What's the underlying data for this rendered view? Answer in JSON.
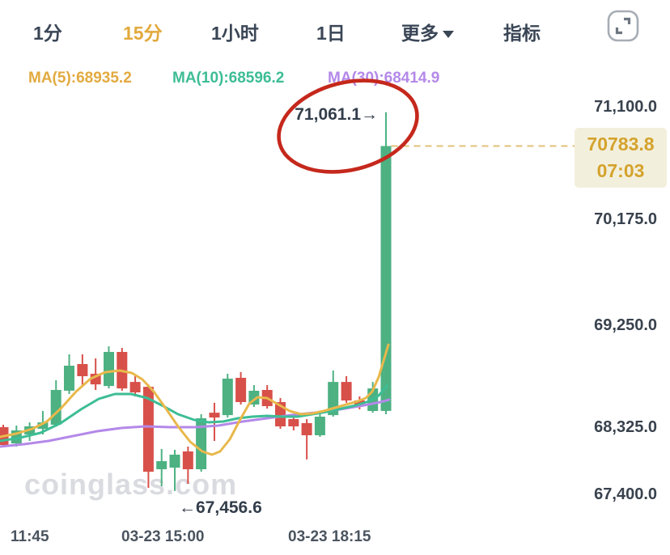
{
  "toolbar": {
    "tabs": [
      {
        "label": "1分"
      },
      {
        "label": "15分"
      },
      {
        "label": "1小时"
      },
      {
        "label": "1日"
      },
      {
        "label": "更多"
      },
      {
        "label": "指标"
      }
    ]
  },
  "ma_row": {
    "ma5_label": "MA(5):68935.2",
    "ma10_label": "MA(10):68596.2",
    "ma30_label": "MA(30):68414.9"
  },
  "watermark": "coinglass.com",
  "badge": {
    "price": "70783.8",
    "time": "07:03"
  },
  "annotations": {
    "high": "71,061.1→",
    "low": "←67,456.6"
  },
  "axis": {
    "y_labels": [
      "71,100.0",
      "70,175.0",
      "69,250.0",
      "68,325.0",
      "67,400.0"
    ],
    "x_labels": [
      "11:45",
      "03-23 15:00",
      "03-23 18:15"
    ]
  },
  "colors": {
    "bull": "#4db182",
    "bear": "#d8504a",
    "ma5": "#e8b84b",
    "ma10": "#3dbd95",
    "ma30": "#b489e9",
    "dashed_price_line": "#e2c078",
    "highlight_ellipse": "#c5281c",
    "active_tab": "#e2a93c",
    "badge_bg": "#f2efdc",
    "badge_text": "#d5a32d"
  },
  "chart_data": {
    "type": "candlestick",
    "timeframe": "15分",
    "title": "",
    "y_ticks": [
      71100.0,
      70175.0,
      69250.0,
      68325.0,
      67400.0
    ],
    "x_ticks": [
      "11:45",
      "03-23 15:00",
      "03-23 18:15"
    ],
    "last_price": 70783.8,
    "last_update_time": "07:03",
    "session_high": 71061.1,
    "session_low": 67456.6,
    "ma_values": {
      "ma5": 68935.2,
      "ma10": 68596.2,
      "ma30": 68414.9
    },
    "candles": [
      [
        68332,
        68354,
        68058,
        68091
      ],
      [
        68113,
        68347,
        68069,
        68292
      ],
      [
        68236,
        68376,
        68147,
        68340
      ],
      [
        68314,
        68479,
        68236,
        68376
      ],
      [
        68354,
        68758,
        68336,
        68670
      ],
      [
        68663,
        68993,
        68633,
        68890
      ],
      [
        68905,
        68993,
        68699,
        68795
      ],
      [
        68817,
        68956,
        68670,
        68721
      ],
      [
        68706,
        69066,
        68684,
        69015
      ],
      [
        69015,
        69052,
        68663,
        68684
      ],
      [
        68743,
        68795,
        68611,
        68648
      ],
      [
        68699,
        68721,
        67500,
        67723
      ],
      [
        67757,
        68035,
        67523,
        67868
      ],
      [
        67779,
        68024,
        67456.6,
        67957
      ],
      [
        68002,
        68069,
        67556,
        67757
      ],
      [
        67757,
        68450,
        67723,
        68413
      ],
      [
        68464,
        68553,
        68147,
        68420
      ],
      [
        68442,
        68817,
        68420,
        68773
      ],
      [
        68780,
        68832,
        68538,
        68560
      ],
      [
        68538,
        68714,
        68516,
        68663
      ],
      [
        68670,
        68714,
        68501,
        68523
      ],
      [
        68560,
        68597,
        68314,
        68340
      ],
      [
        68406,
        68450,
        68292,
        68340
      ],
      [
        68369,
        68406,
        67891,
        68225
      ],
      [
        68225,
        68464,
        68202,
        68428
      ],
      [
        68442,
        68846,
        68428,
        68743
      ],
      [
        68743,
        68795,
        68553,
        68575
      ],
      [
        68575,
        68611,
        68494,
        68523
      ],
      [
        68479,
        68743,
        68464,
        68684
      ],
      [
        68480,
        71061.1,
        68450,
        70783.8
      ]
    ],
    "ma_lines": {
      "ma5": [
        [
          0,
          540
        ],
        [
          20,
          536
        ],
        [
          40,
          530
        ],
        [
          58,
          521
        ],
        [
          76,
          504
        ],
        [
          94,
          484
        ],
        [
          112,
          468
        ],
        [
          130,
          460
        ],
        [
          148,
          458
        ],
        [
          163,
          461
        ],
        [
          176,
          469
        ],
        [
          190,
          484
        ],
        [
          205,
          505
        ],
        [
          220,
          527
        ],
        [
          235,
          546
        ],
        [
          250,
          558
        ],
        [
          262,
          562
        ],
        [
          272,
          558
        ],
        [
          284,
          543
        ],
        [
          296,
          520
        ],
        [
          308,
          499
        ],
        [
          318,
          491
        ],
        [
          330,
          492
        ],
        [
          344,
          500
        ],
        [
          358,
          508
        ],
        [
          372,
          512
        ],
        [
          386,
          511
        ],
        [
          400,
          508
        ],
        [
          414,
          504
        ],
        [
          428,
          500
        ],
        [
          442,
          496
        ],
        [
          452,
          492
        ],
        [
          460,
          484
        ],
        [
          468,
          466
        ],
        [
          474,
          446
        ],
        [
          480,
          426
        ]
      ],
      "ma10": [
        [
          0,
          545
        ],
        [
          25,
          541
        ],
        [
          50,
          535
        ],
        [
          75,
          523
        ],
        [
          100,
          506
        ],
        [
          122,
          493
        ],
        [
          142,
          487
        ],
        [
          162,
          487
        ],
        [
          182,
          492
        ],
        [
          202,
          502
        ],
        [
          220,
          512
        ],
        [
          240,
          519
        ],
        [
          258,
          522
        ],
        [
          276,
          521
        ],
        [
          294,
          517
        ],
        [
          312,
          515
        ],
        [
          330,
          514
        ],
        [
          350,
          515
        ],
        [
          368,
          515
        ],
        [
          386,
          512
        ],
        [
          404,
          509
        ],
        [
          422,
          505
        ],
        [
          440,
          501
        ],
        [
          456,
          496
        ],
        [
          468,
          489
        ],
        [
          478,
          477
        ]
      ],
      "ma30": [
        [
          0,
          552
        ],
        [
          30,
          549
        ],
        [
          60,
          545
        ],
        [
          90,
          539
        ],
        [
          120,
          533
        ],
        [
          150,
          529
        ],
        [
          180,
          527
        ],
        [
          210,
          528
        ],
        [
          240,
          528
        ],
        [
          270,
          526
        ],
        [
          300,
          521
        ],
        [
          330,
          517
        ],
        [
          360,
          513
        ],
        [
          390,
          510
        ],
        [
          420,
          506
        ],
        [
          450,
          501
        ],
        [
          470,
          497
        ],
        [
          481,
          494
        ]
      ]
    }
  }
}
